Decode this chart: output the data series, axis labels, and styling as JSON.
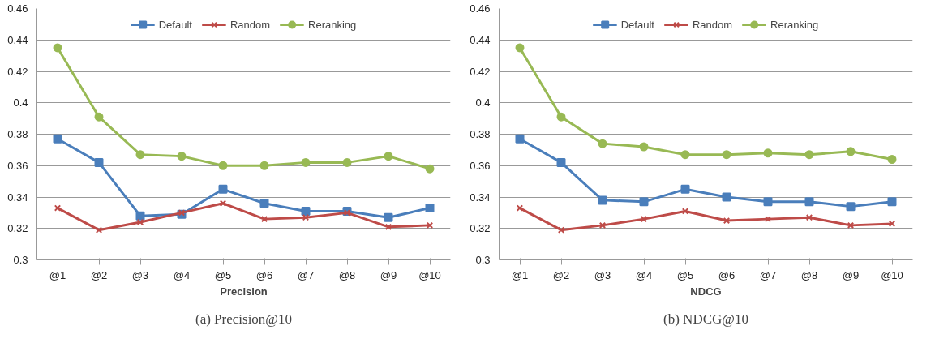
{
  "chart_data": [
    {
      "type": "line",
      "xlabel": "Precision",
      "annotations": [
        "(a) Precision@10"
      ],
      "categories": [
        "@1",
        "@2",
        "@3",
        "@4",
        "@5",
        "@6",
        "@7",
        "@8",
        "@9",
        "@10"
      ],
      "ylim": [
        0.3,
        0.46
      ],
      "yticks": [
        0.3,
        0.32,
        0.34,
        0.36,
        0.38,
        0.4,
        0.42,
        0.44,
        0.46
      ],
      "grid": "y",
      "legend": "top",
      "series": [
        {
          "name": "Default",
          "color": "#4a7ebb",
          "marker": "square",
          "values": [
            0.377,
            0.362,
            0.328,
            0.329,
            0.345,
            0.336,
            0.331,
            0.331,
            0.327,
            0.333
          ]
        },
        {
          "name": "Random",
          "color": "#be4b48",
          "marker": "cross",
          "values": [
            0.333,
            0.319,
            0.324,
            0.33,
            0.336,
            0.326,
            0.327,
            0.33,
            0.321,
            0.322
          ]
        },
        {
          "name": "Reranking",
          "color": "#98b954",
          "marker": "circle",
          "values": [
            0.435,
            0.391,
            0.367,
            0.366,
            0.36,
            0.36,
            0.362,
            0.362,
            0.366,
            0.358
          ]
        }
      ]
    },
    {
      "type": "line",
      "xlabel": "NDCG",
      "annotations": [
        "(b) NDCG@10"
      ],
      "categories": [
        "@1",
        "@2",
        "@3",
        "@4",
        "@5",
        "@6",
        "@7",
        "@8",
        "@9",
        "@10"
      ],
      "ylim": [
        0.3,
        0.46
      ],
      "yticks": [
        0.3,
        0.32,
        0.34,
        0.36,
        0.38,
        0.4,
        0.42,
        0.44,
        0.46
      ],
      "grid": "y",
      "legend": "top",
      "series": [
        {
          "name": "Default",
          "color": "#4a7ebb",
          "marker": "square",
          "values": [
            0.377,
            0.362,
            0.338,
            0.337,
            0.345,
            0.34,
            0.337,
            0.337,
            0.334,
            0.337
          ]
        },
        {
          "name": "Random",
          "color": "#be4b48",
          "marker": "cross",
          "values": [
            0.333,
            0.319,
            0.322,
            0.326,
            0.331,
            0.325,
            0.326,
            0.327,
            0.322,
            0.323
          ]
        },
        {
          "name": "Reranking",
          "color": "#98b954",
          "marker": "circle",
          "values": [
            0.435,
            0.391,
            0.374,
            0.372,
            0.367,
            0.367,
            0.368,
            0.367,
            0.369,
            0.364
          ]
        }
      ]
    }
  ]
}
